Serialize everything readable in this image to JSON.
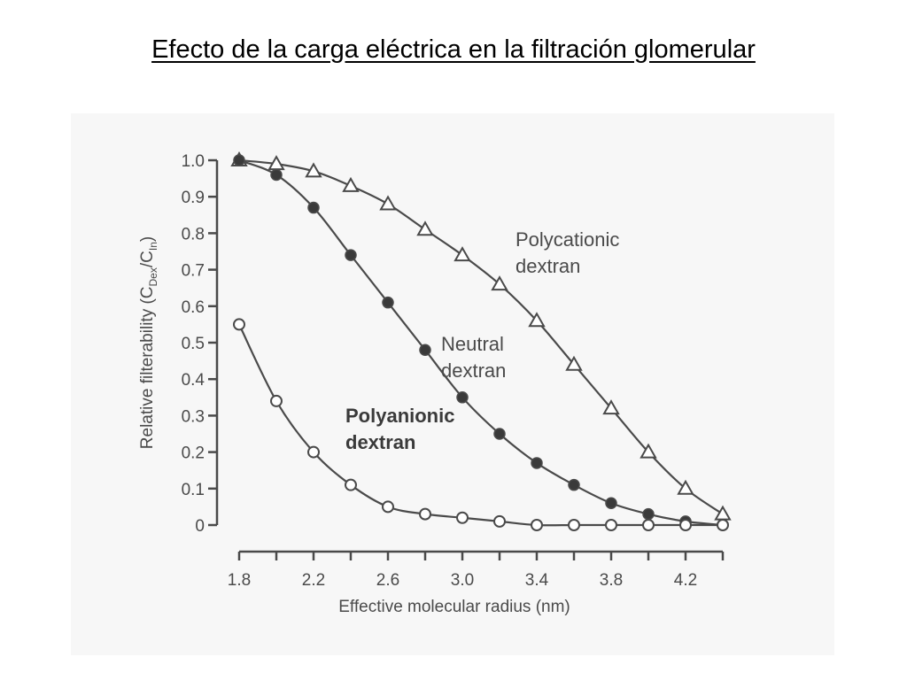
{
  "slide": {
    "title": "Efecto de la carga eléctrica en la filtración glomerular"
  },
  "colors": {
    "ink": "#4a4a4a",
    "panel": "#f7f7f7"
  },
  "chart_data": {
    "type": "line",
    "xlabel": "Effective molecular radius (nm)",
    "ylabel": "Relative filterability (C",
    "ylabel_sub1": "Dex",
    "ylabel_mid": "/C",
    "ylabel_sub2": "In",
    "ylabel_end": ")",
    "xlim": [
      1.8,
      4.4
    ],
    "ylim": [
      0,
      1.0
    ],
    "x_ticks": [
      1.8,
      2.0,
      2.2,
      2.4,
      2.6,
      2.8,
      3.0,
      3.2,
      3.4,
      3.6,
      3.8,
      4.0,
      4.2,
      4.4
    ],
    "x_tick_labels": [
      "1.8",
      "2.2",
      "2.6",
      "3.0",
      "3.4",
      "3.8",
      "4.2"
    ],
    "x_tick_label_values": [
      1.8,
      2.2,
      2.6,
      3.0,
      3.4,
      3.8,
      4.2
    ],
    "y_ticks": [
      0,
      0.1,
      0.2,
      0.3,
      0.4,
      0.5,
      0.6,
      0.7,
      0.8,
      0.9,
      1.0
    ],
    "y_tick_labels": [
      "0",
      "0.1",
      "0.2",
      "0.3",
      "0.4",
      "0.5",
      "0.6",
      "0.7",
      "0.8",
      "0.9",
      "1.0"
    ],
    "grid": false,
    "legend": "none",
    "series": [
      {
        "name": "Polycationic dextran",
        "label_lines": [
          "Polycationic",
          "dextran"
        ],
        "marker": "triangle-open",
        "x": [
          1.8,
          2.0,
          2.2,
          2.4,
          2.6,
          2.8,
          3.0,
          3.2,
          3.4,
          3.6,
          3.8,
          4.0,
          4.2,
          4.4
        ],
        "y": [
          1.0,
          0.99,
          0.97,
          0.93,
          0.88,
          0.81,
          0.74,
          0.66,
          0.56,
          0.44,
          0.32,
          0.2,
          0.1,
          0.03
        ]
      },
      {
        "name": "Neutral dextran",
        "label_lines": [
          "Neutral",
          "dextran"
        ],
        "marker": "circle-filled",
        "x": [
          1.8,
          2.0,
          2.2,
          2.4,
          2.6,
          2.8,
          3.0,
          3.2,
          3.4,
          3.6,
          3.8,
          4.0,
          4.2,
          4.4
        ],
        "y": [
          1.0,
          0.96,
          0.87,
          0.74,
          0.61,
          0.48,
          0.35,
          0.25,
          0.17,
          0.11,
          0.06,
          0.03,
          0.01,
          0.0
        ]
      },
      {
        "name": "Polyanionic dextran",
        "label_lines": [
          "Polyanionic",
          "dextran"
        ],
        "marker": "circle-open",
        "x": [
          1.8,
          2.0,
          2.2,
          2.4,
          2.6,
          2.8,
          3.0,
          3.2,
          3.4,
          3.6,
          3.8,
          4.0,
          4.2,
          4.4
        ],
        "y": [
          0.55,
          0.34,
          0.2,
          0.11,
          0.05,
          0.03,
          0.02,
          0.01,
          0.0,
          0.0,
          0.0,
          0.0,
          0.0,
          0.0
        ]
      }
    ]
  }
}
